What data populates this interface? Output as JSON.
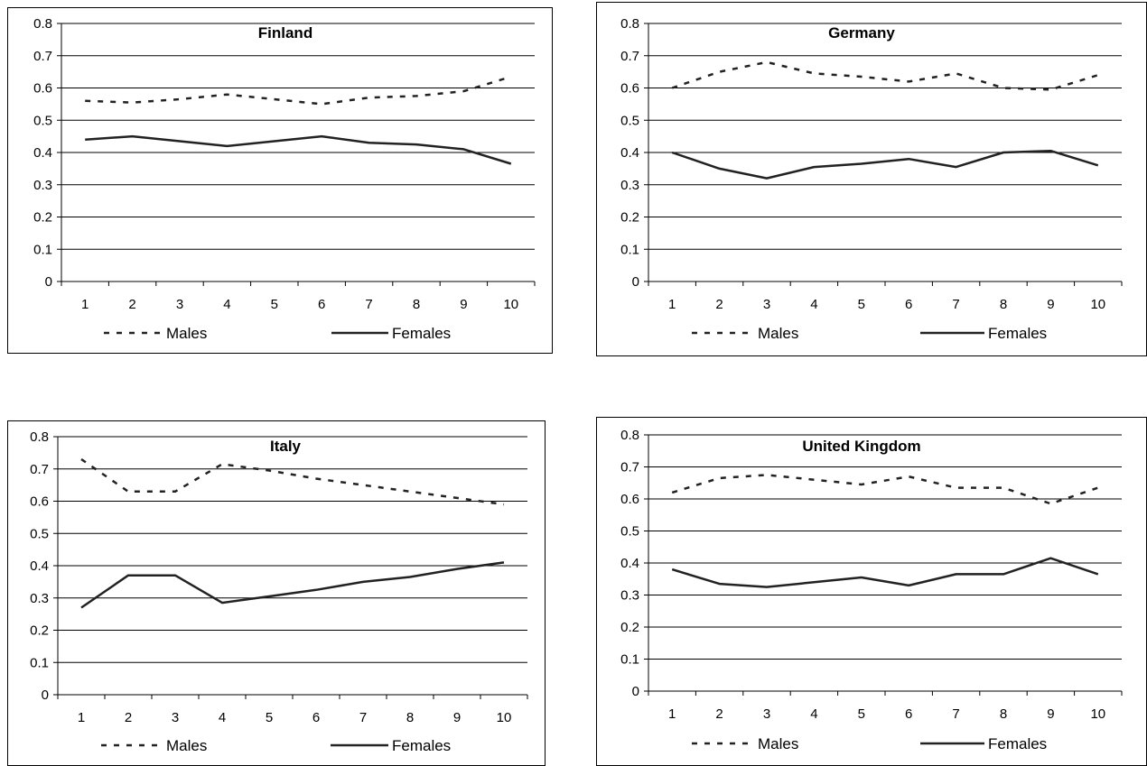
{
  "chart_data": [
    {
      "type": "line",
      "title": "Finland",
      "categories": [
        "1",
        "2",
        "3",
        "4",
        "5",
        "6",
        "7",
        "8",
        "9",
        "10"
      ],
      "ylim": [
        0,
        0.8
      ],
      "yticks": [
        "0",
        "0.1",
        "0.2",
        "0.3",
        "0.4",
        "0.5",
        "0.6",
        "0.7",
        "0.8"
      ],
      "grid": true,
      "legend_position": "bottom",
      "series": [
        {
          "name": "Males",
          "style": "dashed",
          "values": [
            0.56,
            0.555,
            0.565,
            0.58,
            0.565,
            0.55,
            0.57,
            0.575,
            0.59,
            0.635
          ]
        },
        {
          "name": "Females",
          "style": "solid",
          "values": [
            0.44,
            0.45,
            0.435,
            0.42,
            0.435,
            0.45,
            0.43,
            0.425,
            0.41,
            0.365
          ]
        }
      ]
    },
    {
      "type": "line",
      "title": "Germany",
      "categories": [
        "1",
        "2",
        "3",
        "4",
        "5",
        "6",
        "7",
        "8",
        "9",
        "10"
      ],
      "ylim": [
        0,
        0.8
      ],
      "yticks": [
        "0",
        "0.1",
        "0.2",
        "0.3",
        "0.4",
        "0.5",
        "0.6",
        "0.7",
        "0.8"
      ],
      "grid": true,
      "legend_position": "bottom",
      "series": [
        {
          "name": "Males",
          "style": "dashed",
          "values": [
            0.6,
            0.65,
            0.68,
            0.645,
            0.635,
            0.62,
            0.645,
            0.6,
            0.595,
            0.64
          ]
        },
        {
          "name": "Females",
          "style": "solid",
          "values": [
            0.4,
            0.35,
            0.32,
            0.355,
            0.365,
            0.38,
            0.355,
            0.4,
            0.405,
            0.36
          ]
        }
      ]
    },
    {
      "type": "line",
      "title": "Italy",
      "categories": [
        "1",
        "2",
        "3",
        "4",
        "5",
        "6",
        "7",
        "8",
        "9",
        "10"
      ],
      "ylim": [
        0,
        0.8
      ],
      "yticks": [
        "0",
        "0.1",
        "0.2",
        "0.3",
        "0.4",
        "0.5",
        "0.6",
        "0.7",
        "0.8"
      ],
      "grid": true,
      "legend_position": "bottom",
      "series": [
        {
          "name": "Males",
          "style": "dashed",
          "values": [
            0.73,
            0.63,
            0.63,
            0.715,
            0.695,
            0.67,
            0.65,
            0.63,
            0.61,
            0.59
          ]
        },
        {
          "name": "Females",
          "style": "solid",
          "values": [
            0.27,
            0.37,
            0.37,
            0.285,
            0.305,
            0.325,
            0.35,
            0.365,
            0.39,
            0.41
          ]
        }
      ]
    },
    {
      "type": "line",
      "title": "United Kingdom",
      "categories": [
        "1",
        "2",
        "3",
        "4",
        "5",
        "6",
        "7",
        "8",
        "9",
        "10"
      ],
      "ylim": [
        0,
        0.8
      ],
      "yticks": [
        "0",
        "0.1",
        "0.2",
        "0.3",
        "0.4",
        "0.5",
        "0.6",
        "0.7",
        "0.8"
      ],
      "grid": true,
      "legend_position": "bottom",
      "series": [
        {
          "name": "Males",
          "style": "dashed",
          "values": [
            0.62,
            0.665,
            0.675,
            0.66,
            0.645,
            0.67,
            0.635,
            0.635,
            0.585,
            0.635
          ]
        },
        {
          "name": "Females",
          "style": "solid",
          "values": [
            0.38,
            0.335,
            0.325,
            0.34,
            0.355,
            0.33,
            0.365,
            0.365,
            0.415,
            0.365
          ]
        }
      ]
    }
  ],
  "colors": {
    "line": "#222222",
    "grid": "#000000",
    "border": "#000000",
    "background": "#ffffff"
  }
}
